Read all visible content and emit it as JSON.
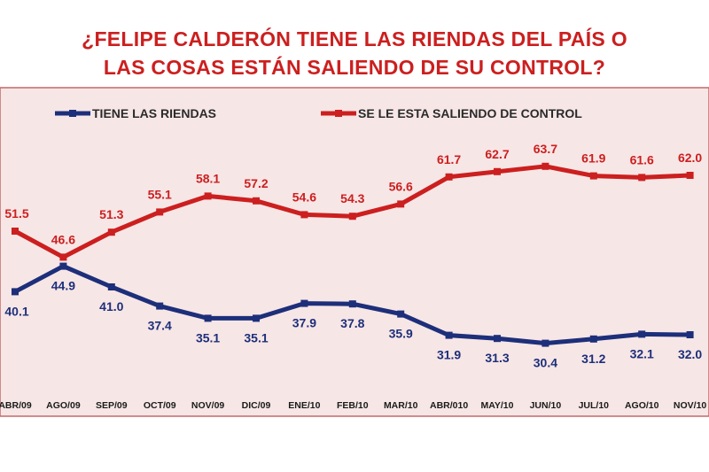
{
  "title_line1": "¿FELIPE CALDERÓN TIENE LAS RIENDAS DEL PAÍS O",
  "title_line2": "LAS COSAS ESTÁN SALIENDO DE SU CONTROL?",
  "colors": {
    "title": "#cc1f1f",
    "panel": "#f7e6e6",
    "panel_border": "#c46a6a",
    "series_blue": "#1d2f7a",
    "series_red": "#cc1f1f",
    "label_blue": "#1d2f7a",
    "label_red": "#cc1f1f"
  },
  "chart_data": {
    "type": "line",
    "title": "¿FELIPE CALDERÓN TIENE LAS RIENDAS DEL PAÍS O LAS COSAS ESTÁN SALIENDO DE SU CONTROL?",
    "categories": [
      "ABR/09",
      "AGO/09",
      "SEP/09",
      "OCT/09",
      "NOV/09",
      "DIC/09",
      "ENE/10",
      "FEB/10",
      "MAR/10",
      "ABR/010",
      "MAY/10",
      "JUN/10",
      "JUL/10",
      "AGO/10",
      "NOV/10"
    ],
    "series": [
      {
        "name": "TIENE LAS RIENDAS",
        "color": "#1d2f7a",
        "values": [
          40.1,
          44.9,
          41.0,
          37.4,
          35.1,
          35.1,
          37.9,
          37.8,
          35.9,
          31.9,
          31.3,
          30.4,
          31.2,
          32.1,
          32.0
        ],
        "labels": [
          "40.1",
          "44.9",
          "41.0",
          "37.4",
          "35.1",
          "35.1",
          "37.9",
          "37.8",
          "35.9",
          "31.9",
          "31.3",
          "30.4",
          "31.2",
          "32.1",
          "32.0"
        ]
      },
      {
        "name": "SE LE ESTA SALIENDO DE CONTROL",
        "color": "#cc1f1f",
        "values": [
          51.5,
          46.6,
          51.3,
          55.1,
          58.1,
          57.2,
          54.6,
          54.3,
          56.6,
          61.7,
          62.7,
          63.7,
          61.9,
          61.6,
          62.0
        ],
        "labels": [
          "51.5",
          "46.6",
          "51.3",
          "55.1",
          "58.1",
          "57.2",
          "54.6",
          "54.3",
          "56.6",
          "61.7",
          "62.7",
          "63.7",
          "61.9",
          "61.6",
          "62.0"
        ]
      }
    ],
    "ylim": [
      25,
      70
    ],
    "legend_position": "top",
    "grid": false
  }
}
